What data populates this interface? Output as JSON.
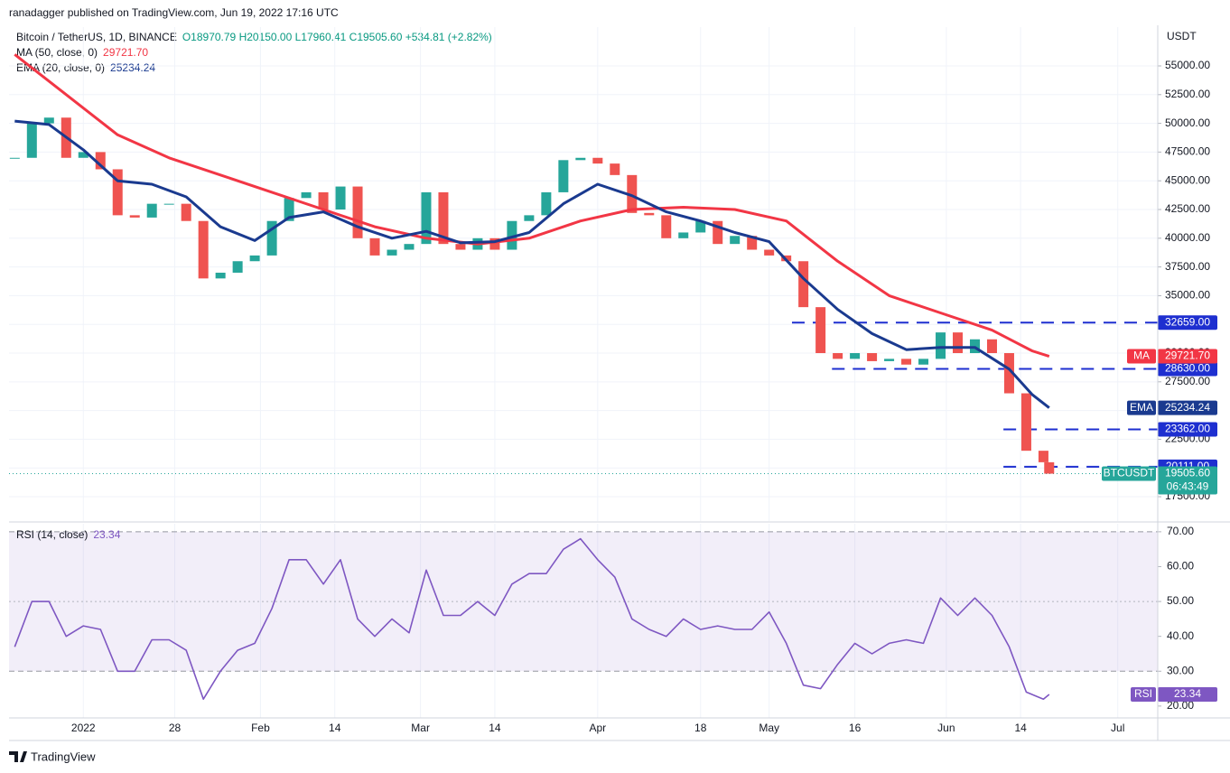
{
  "header": {
    "publisher": "ranadagger published on TradingView.com, Jun 19, 2022 17:16 UTC"
  },
  "footer": {
    "brand": "TradingView"
  },
  "chart_data": [
    {
      "type": "candlestick",
      "title": "Bitcoin / TetherUS, 1D, BINANCE",
      "ohlc_text": "O18970.79 H20150.00 L17960.41 C19505.60 +534.81 (+2.82%)",
      "axis_label": "USDT",
      "colors": {
        "up": "#26a69a",
        "down": "#ef5350"
      },
      "x": [
        0,
        3,
        6,
        9,
        12,
        15,
        18,
        21,
        24,
        27,
        30,
        33,
        36,
        39,
        42,
        45,
        48,
        51,
        54,
        57,
        60,
        63,
        66,
        69,
        72,
        75,
        78,
        81,
        84,
        87,
        90,
        93,
        96,
        99,
        102,
        105,
        108,
        111,
        114,
        117,
        120,
        123,
        126,
        129,
        132,
        135,
        138,
        141,
        144,
        147,
        150,
        153,
        156,
        159,
        162,
        165,
        168,
        171,
        174,
        177,
        180,
        181
      ],
      "closes": [
        47000,
        50000,
        50500,
        47000,
        47500,
        46000,
        42000,
        41800,
        43000,
        43000,
        41500,
        36500,
        37000,
        38000,
        38500,
        41500,
        43500,
        44000,
        42500,
        44500,
        40000,
        38500,
        39000,
        39500,
        44000,
        39500,
        39000,
        40000,
        39000,
        41500,
        42000,
        44000,
        46800,
        47000,
        46500,
        45500,
        42200,
        42000,
        40000,
        40500,
        41500,
        39500,
        40200,
        39000,
        38500,
        38000,
        34000,
        30000,
        29500,
        30000,
        29300,
        29500,
        29000,
        29500,
        31800,
        30000,
        31200,
        30000,
        26500,
        21500,
        20500,
        19505.6
      ],
      "series": [
        {
          "name": "MA (50, close, 0)",
          "short_name": "MA",
          "color": "#f23645",
          "x": [
            0,
            9,
            18,
            27,
            36,
            45,
            54,
            63,
            72,
            81,
            90,
            99,
            108,
            117,
            126,
            135,
            144,
            153,
            162,
            171,
            178,
            181
          ],
          "values": [
            56000,
            52500,
            49000,
            47000,
            45500,
            44000,
            42500,
            41000,
            40000,
            39500,
            40000,
            41500,
            42500,
            42700,
            42500,
            41500,
            38000,
            35000,
            33500,
            32000,
            30200,
            29721.7
          ],
          "value_label": "29721.70"
        },
        {
          "name": "EMA (20, close, 0)",
          "short_name": "EMA",
          "color": "#1a3a8f",
          "x": [
            0,
            6,
            12,
            18,
            24,
            30,
            36,
            42,
            48,
            54,
            60,
            66,
            72,
            78,
            84,
            90,
            96,
            102,
            108,
            114,
            120,
            126,
            132,
            138,
            144,
            150,
            156,
            162,
            168,
            174,
            178,
            181
          ],
          "values": [
            50200,
            49900,
            47700,
            45000,
            44700,
            43600,
            41000,
            39800,
            41800,
            42300,
            41000,
            40000,
            40600,
            39600,
            39700,
            40500,
            43000,
            44700,
            43700,
            42300,
            41500,
            40500,
            39700,
            36500,
            33800,
            31700,
            30300,
            30500,
            30500,
            28600,
            26400,
            25234.24
          ],
          "value_label": "25234.24"
        }
      ],
      "last_price": {
        "name": "BTCUSDT",
        "value": 19505.6,
        "value_label": "19505.60",
        "countdown": "06:43:49"
      },
      "levels": {
        "values": [
          32659,
          28630,
          23362,
          20111
        ],
        "value_labels": [
          "32659.00",
          "28630.00",
          "23362.00",
          "20111.00"
        ],
        "x_start": [
          136,
          143,
          173,
          173
        ],
        "color": "#1e2fd0"
      },
      "xlim": [
        -1,
        200
      ],
      "ylim": [
        15380,
        58380
      ],
      "yticks": [
        {
          "value": 17500,
          "label": "17500.00"
        },
        {
          "value": 20000,
          "label": "20000.00"
        },
        {
          "value": 22500,
          "label": "22500.00"
        },
        {
          "value": 25000,
          "label": "25000.00"
        },
        {
          "value": 27500,
          "label": "27500.00"
        },
        {
          "value": 30000,
          "label": "30000.00"
        },
        {
          "value": 32500,
          "label": "32500.00"
        },
        {
          "value": 35000,
          "label": "35000.00"
        },
        {
          "value": 37500,
          "label": "37500.00"
        },
        {
          "value": 40000,
          "label": "40000.00"
        },
        {
          "value": 42500,
          "label": "42500.00"
        },
        {
          "value": 45000,
          "label": "45000.00"
        },
        {
          "value": 47500,
          "label": "47500.00"
        },
        {
          "value": 50000,
          "label": "50000.00"
        },
        {
          "value": 52500,
          "label": "52500.00"
        },
        {
          "value": 55000,
          "label": "55000.00"
        }
      ],
      "grid": true
    },
    {
      "type": "line",
      "title": "RSI (14, close)",
      "short_name": "RSI",
      "color": "#7e57c2",
      "x": [
        0,
        3,
        6,
        9,
        12,
        15,
        18,
        21,
        24,
        27,
        30,
        33,
        36,
        39,
        42,
        45,
        48,
        51,
        54,
        57,
        60,
        63,
        66,
        69,
        72,
        75,
        78,
        81,
        84,
        87,
        90,
        93,
        96,
        99,
        102,
        105,
        108,
        111,
        114,
        117,
        120,
        123,
        126,
        129,
        132,
        135,
        138,
        141,
        144,
        147,
        150,
        153,
        156,
        159,
        162,
        165,
        168,
        171,
        174,
        177,
        180,
        181
      ],
      "values": [
        37,
        50,
        50,
        40,
        43,
        42,
        30,
        30,
        39,
        39,
        36,
        22,
        30,
        36,
        38,
        48,
        62,
        62,
        55,
        62,
        45,
        40,
        45,
        41,
        59,
        46,
        46,
        50,
        46,
        55,
        58,
        58,
        65,
        68,
        62,
        57,
        45,
        42,
        40,
        45,
        42,
        43,
        42,
        42,
        47,
        38,
        26,
        25,
        32,
        38,
        35,
        38,
        39,
        38,
        51,
        46,
        51,
        46,
        37,
        24,
        22,
        23.34
      ],
      "value_label": "23.34",
      "band": [
        30,
        70
      ],
      "midline": 50,
      "xlim": [
        -1,
        200
      ],
      "ylim": [
        16.6,
        72.3
      ],
      "yticks": [
        {
          "value": 20,
          "label": "20.00"
        },
        {
          "value": 30,
          "label": "30.00"
        },
        {
          "value": 40,
          "label": "40.00"
        },
        {
          "value": 50,
          "label": "50.00"
        },
        {
          "value": 60,
          "label": "60.00"
        },
        {
          "value": 70,
          "label": "70.00"
        }
      ],
      "xticks": [
        {
          "value": 12,
          "label": "2022"
        },
        28,
        {
          "value": 43,
          "label": "Feb"
        },
        {
          "value": 56,
          "label": "14"
        },
        {
          "value": 71,
          "label": "Mar"
        },
        {
          "value": 84,
          "label": "14"
        },
        {
          "value": 102,
          "label": "Apr"
        },
        {
          "value": 120,
          "label": "18"
        },
        {
          "value": 132,
          "label": "May"
        },
        {
          "value": 147,
          "label": "16"
        },
        {
          "value": 163,
          "label": "Jun"
        },
        {
          "value": 176,
          "label": "14"
        },
        {
          "value": 193,
          "label": "Jul"
        }
      ],
      "grid": true
    }
  ]
}
